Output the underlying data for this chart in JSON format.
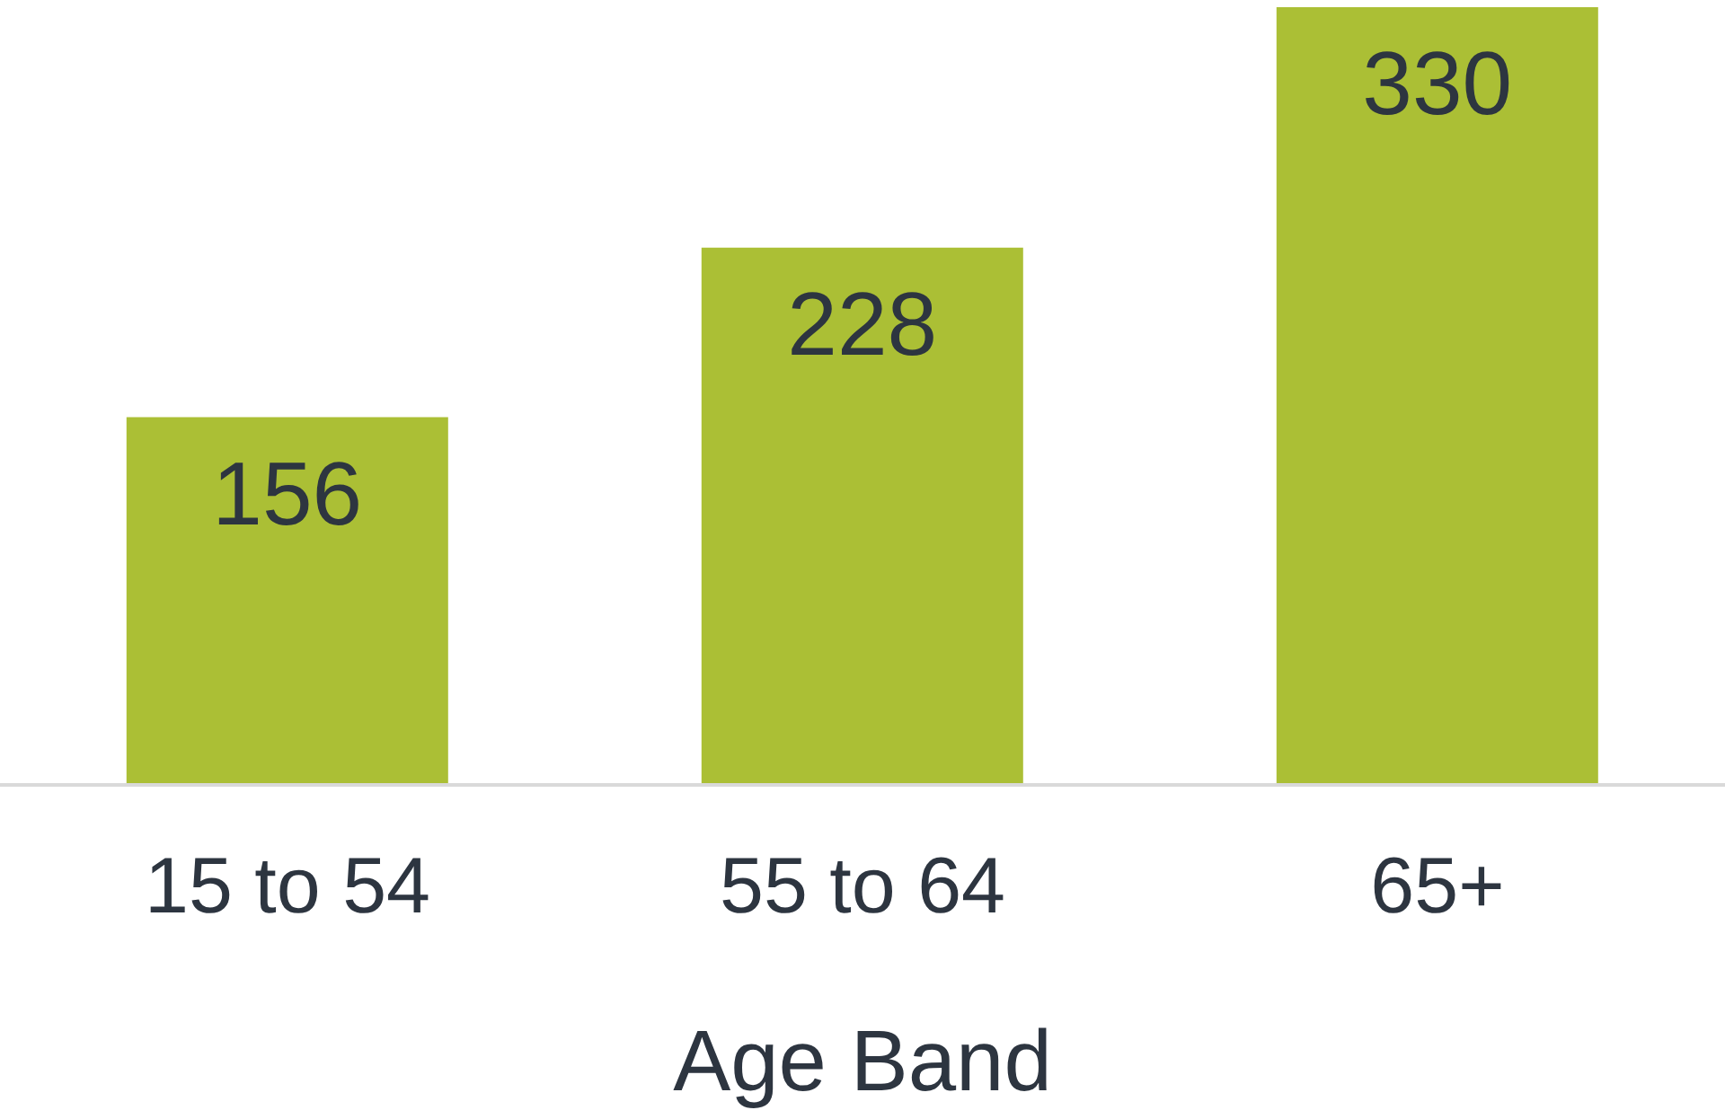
{
  "chart_data": {
    "type": "bar",
    "xlabel": "Age Band",
    "categories": [
      "15 to 54",
      "55 to 64",
      "65+"
    ],
    "values": [
      156,
      228,
      330
    ],
    "color": "#abbf35",
    "data_labels": true,
    "grid": false,
    "legend": false
  }
}
